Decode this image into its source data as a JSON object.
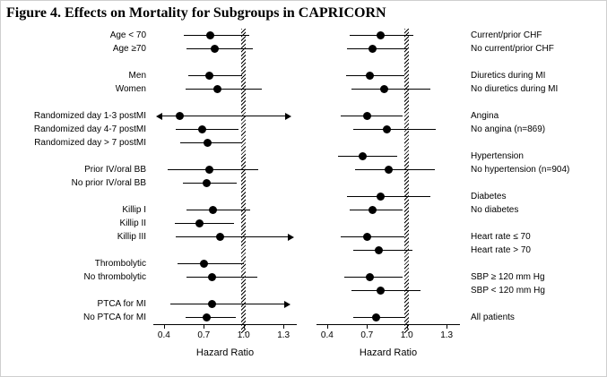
{
  "chart_data": {
    "type": "forest",
    "title": "Figure 4. Effects on Mortality for Subgroups in CAPRICORN",
    "axis": {
      "label": "Hazard Ratio",
      "ticks": [
        0.4,
        0.7,
        1.0,
        1.3
      ],
      "tick_labels": [
        "0.4",
        "0.7",
        "1.0",
        "1.3"
      ],
      "range": [
        0.32,
        1.4
      ],
      "reference_line": 1.0
    },
    "panels": [
      {
        "label_side": "left",
        "groups": [
          [
            {
              "label": "Age < 70",
              "hr": 0.75,
              "lo": 0.55,
              "hi": 1.04
            },
            {
              "label": "Age ≥70",
              "hr": 0.78,
              "lo": 0.57,
              "hi": 1.07
            }
          ],
          [
            {
              "label": "Men",
              "hr": 0.74,
              "lo": 0.58,
              "hi": 0.99
            },
            {
              "label": "Women",
              "hr": 0.8,
              "lo": 0.56,
              "hi": 1.14
            }
          ],
          [
            {
              "label": "Randomized day 1-3 postMI",
              "hr": 0.52,
              "lo": 0.34,
              "hi": 1.36,
              "arrow_lo": true,
              "arrow_hi": true
            },
            {
              "label": "Randomized day 4-7 postMI",
              "hr": 0.69,
              "lo": 0.49,
              "hi": 0.96
            },
            {
              "label": "Randomized day > 7 postMI",
              "hr": 0.73,
              "lo": 0.52,
              "hi": 0.98
            }
          ],
          [
            {
              "label": "Prior IV/oral BB",
              "hr": 0.74,
              "lo": 0.43,
              "hi": 1.11
            },
            {
              "label": "No prior IV/oral BB",
              "hr": 0.72,
              "lo": 0.54,
              "hi": 0.95
            }
          ],
          [
            {
              "label": "Killip I",
              "hr": 0.77,
              "lo": 0.57,
              "hi": 1.05
            },
            {
              "label": "Killip II",
              "hr": 0.67,
              "lo": 0.48,
              "hi": 0.93
            },
            {
              "label": "Killip III",
              "hr": 0.82,
              "lo": 0.49,
              "hi": 1.38,
              "arrow_hi": true
            }
          ],
          [
            {
              "label": "Thrombolytic",
              "hr": 0.7,
              "lo": 0.5,
              "hi": 1.0
            },
            {
              "label": "No thrombolytic",
              "hr": 0.76,
              "lo": 0.57,
              "hi": 1.1
            }
          ],
          [
            {
              "label": "PTCA for MI",
              "hr": 0.76,
              "lo": 0.45,
              "hi": 1.35,
              "arrow_hi": true
            },
            {
              "label": "No PTCA for MI",
              "hr": 0.72,
              "lo": 0.56,
              "hi": 0.94
            }
          ]
        ]
      },
      {
        "label_side": "right",
        "groups": [
          [
            {
              "label": "Current/prior CHF",
              "hr": 0.8,
              "lo": 0.57,
              "hi": 1.05
            },
            {
              "label": "No current/prior CHF",
              "hr": 0.74,
              "lo": 0.55,
              "hi": 1.0
            }
          ],
          [
            {
              "label": "Diuretics during MI",
              "hr": 0.72,
              "lo": 0.54,
              "hi": 0.98
            },
            {
              "label": "No diuretics during MI",
              "hr": 0.83,
              "lo": 0.58,
              "hi": 1.18
            }
          ],
          [
            {
              "label": "Angina",
              "hr": 0.7,
              "lo": 0.5,
              "hi": 0.97
            },
            {
              "label": "No angina (n=869)",
              "hr": 0.85,
              "lo": 0.6,
              "hi": 1.22
            }
          ],
          [
            {
              "label": "Hypertension",
              "hr": 0.67,
              "lo": 0.48,
              "hi": 0.93
            },
            {
              "label": "No hypertension (n=904)",
              "hr": 0.86,
              "lo": 0.61,
              "hi": 1.21
            }
          ],
          [
            {
              "label": "Diabetes",
              "hr": 0.8,
              "lo": 0.55,
              "hi": 1.18
            },
            {
              "label": "No diabetes",
              "hr": 0.74,
              "lo": 0.57,
              "hi": 0.97
            }
          ],
          [
            {
              "label": "Heart rate ≤ 70",
              "hr": 0.7,
              "lo": 0.5,
              "hi": 0.98
            },
            {
              "label": "Heart rate > 70",
              "hr": 0.79,
              "lo": 0.6,
              "hi": 1.04
            }
          ],
          [
            {
              "label": "SBP ≥ 120 mm Hg",
              "hr": 0.72,
              "lo": 0.53,
              "hi": 0.97
            },
            {
              "label": "SBP < 120 mm Hg",
              "hr": 0.8,
              "lo": 0.58,
              "hi": 1.1
            }
          ],
          [
            {
              "label": "All patients",
              "hr": 0.77,
              "lo": 0.6,
              "hi": 0.98
            }
          ]
        ]
      }
    ]
  }
}
